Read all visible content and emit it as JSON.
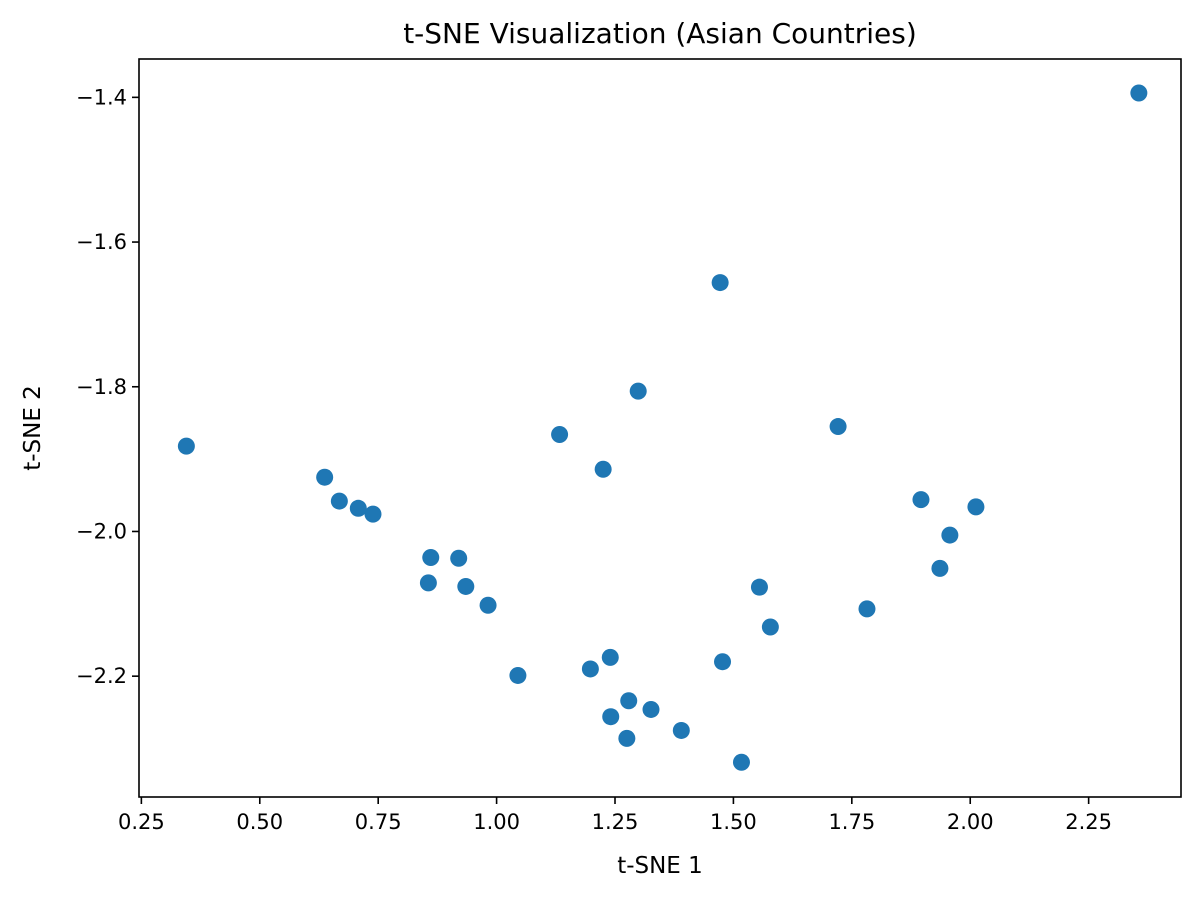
{
  "chart_data": {
    "type": "scatter",
    "title": "t-SNE Visualization (Asian Countries)",
    "xlabel": "t-SNE 1",
    "ylabel": "t-SNE 2",
    "xlim": [
      0.245,
      2.445
    ],
    "ylim": [
      -2.367,
      -1.347
    ],
    "xticks": [
      0.25,
      0.5,
      0.75,
      1.0,
      1.25,
      1.5,
      1.75,
      2.0,
      2.25
    ],
    "xtick_labels": [
      "0.25",
      "0.50",
      "0.75",
      "1.00",
      "1.25",
      "1.50",
      "1.75",
      "2.00",
      "2.25"
    ],
    "yticks": [
      -1.4,
      -1.6,
      -1.8,
      -2.0,
      -2.2
    ],
    "ytick_labels": [
      "−1.4",
      "−1.6",
      "−1.8",
      "−2.0",
      "−2.2"
    ],
    "grid": false,
    "marker_color": "#1f77b4",
    "points": [
      {
        "x": 0.345,
        "y": -1.882
      },
      {
        "x": 0.637,
        "y": -1.925
      },
      {
        "x": 0.668,
        "y": -1.958
      },
      {
        "x": 0.708,
        "y": -1.968
      },
      {
        "x": 0.739,
        "y": -1.976
      },
      {
        "x": 0.861,
        "y": -2.036
      },
      {
        "x": 0.92,
        "y": -2.037
      },
      {
        "x": 0.856,
        "y": -2.071
      },
      {
        "x": 0.935,
        "y": -2.076
      },
      {
        "x": 0.982,
        "y": -2.102
      },
      {
        "x": 1.045,
        "y": -2.199
      },
      {
        "x": 1.133,
        "y": -1.866
      },
      {
        "x": 1.225,
        "y": -1.914
      },
      {
        "x": 1.299,
        "y": -1.806
      },
      {
        "x": 1.198,
        "y": -2.19
      },
      {
        "x": 1.24,
        "y": -2.174
      },
      {
        "x": 1.241,
        "y": -2.256
      },
      {
        "x": 1.279,
        "y": -2.234
      },
      {
        "x": 1.275,
        "y": -2.286
      },
      {
        "x": 1.326,
        "y": -2.246
      },
      {
        "x": 1.39,
        "y": -2.275
      },
      {
        "x": 1.472,
        "y": -1.656
      },
      {
        "x": 1.477,
        "y": -2.18
      },
      {
        "x": 1.517,
        "y": -2.319
      },
      {
        "x": 1.555,
        "y": -2.077
      },
      {
        "x": 1.578,
        "y": -2.132
      },
      {
        "x": 1.721,
        "y": -1.855
      },
      {
        "x": 1.782,
        "y": -2.107
      },
      {
        "x": 1.896,
        "y": -1.956
      },
      {
        "x": 1.936,
        "y": -2.051
      },
      {
        "x": 1.957,
        "y": -2.005
      },
      {
        "x": 2.012,
        "y": -1.966
      },
      {
        "x": 2.356,
        "y": -1.394
      }
    ]
  }
}
